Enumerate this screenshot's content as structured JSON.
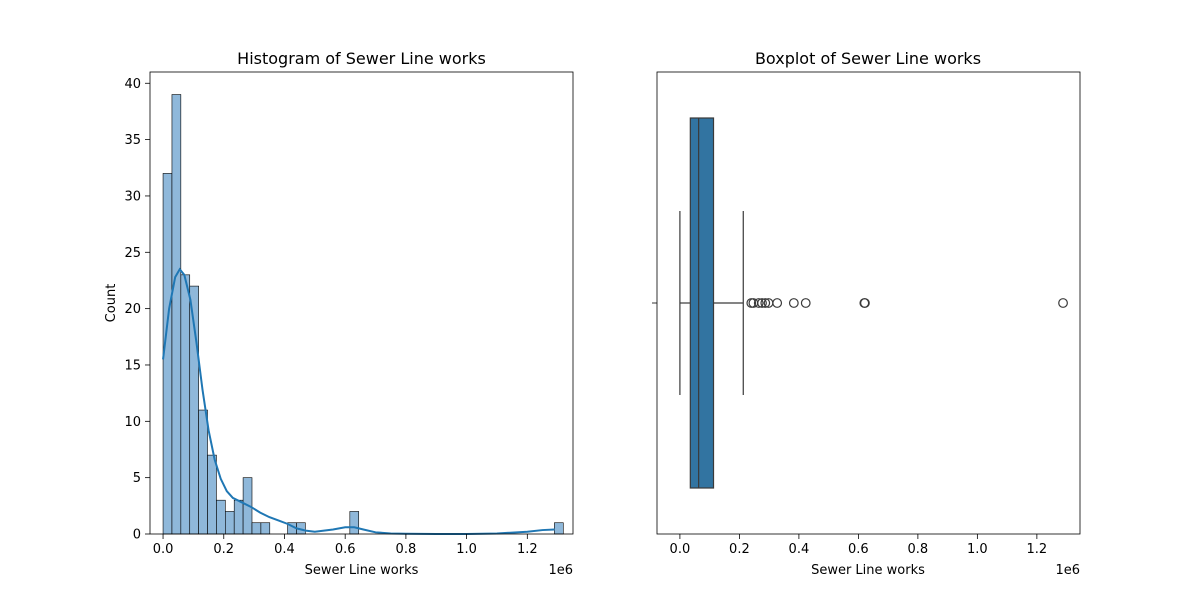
{
  "chart_data": [
    {
      "type": "bar",
      "title": "Histogram of Sewer Line works",
      "xlabel": "Sewer Line works",
      "ylabel": "Count",
      "x_offset_label": "1e6",
      "xlim": [
        -0.043,
        1.3505
      ],
      "ylim": [
        0,
        41
      ],
      "x_ticks": [
        0.0,
        0.2,
        0.4,
        0.6,
        0.8,
        1.0,
        1.2
      ],
      "x_tick_labels": [
        "0.0",
        "0.2",
        "0.4",
        "0.6",
        "0.8",
        "1.0",
        "1.2"
      ],
      "y_ticks": [
        0,
        5,
        10,
        15,
        20,
        25,
        30,
        35,
        40
      ],
      "y_tick_labels": [
        "0",
        "5",
        "10",
        "15",
        "20",
        "25",
        "30",
        "35",
        "40"
      ],
      "bin_start": 0.0,
      "bin_width": 0.0293,
      "counts": [
        32,
        39,
        23,
        22,
        11,
        7,
        3,
        2,
        3,
        5,
        1,
        1,
        0,
        0,
        1,
        1,
        0,
        0,
        0,
        0,
        0,
        2,
        0,
        0,
        0,
        0,
        0,
        0,
        0,
        0,
        0,
        0,
        0,
        0,
        0,
        0,
        0,
        0,
        0,
        0,
        0,
        0,
        0,
        0,
        1
      ],
      "kde": {
        "x": [
          0.0,
          0.02,
          0.04,
          0.055,
          0.07,
          0.09,
          0.11,
          0.13,
          0.15,
          0.17,
          0.19,
          0.21,
          0.23,
          0.26,
          0.29,
          0.32,
          0.35,
          0.38,
          0.41,
          0.44,
          0.47,
          0.5,
          0.53,
          0.56,
          0.6,
          0.63,
          0.66,
          0.7,
          0.75,
          0.8,
          0.9,
          1.0,
          1.1,
          1.2,
          1.25,
          1.29
        ],
        "y": [
          15.5,
          20.0,
          22.8,
          23.5,
          23.0,
          20.8,
          17.0,
          12.8,
          9.2,
          6.6,
          4.9,
          3.8,
          3.2,
          2.8,
          2.4,
          1.9,
          1.5,
          1.2,
          0.9,
          0.5,
          0.3,
          0.2,
          0.3,
          0.4,
          0.6,
          0.6,
          0.4,
          0.15,
          0.05,
          0.02,
          0.0,
          0.0,
          0.05,
          0.2,
          0.35,
          0.4
        ]
      },
      "bar_color": "#8fb8da",
      "line_color": "#1f77b4"
    },
    {
      "type": "boxplot",
      "title": "Boxplot of Sewer Line works",
      "xlabel": "Sewer Line works",
      "x_offset_label": "1e6",
      "xlim": [
        -0.077,
        1.345
      ],
      "x_ticks": [
        0.0,
        0.2,
        0.4,
        0.6,
        0.8,
        1.0,
        1.2
      ],
      "x_tick_labels": [
        "0.0",
        "0.2",
        "0.4",
        "0.6",
        "0.8",
        "1.0",
        "1.2"
      ],
      "whisker_low": 0.0,
      "q1": 0.035,
      "median": 0.063,
      "q3": 0.113,
      "whisker_high": 0.213,
      "outliers": [
        0.24,
        0.247,
        0.265,
        0.276,
        0.287,
        0.298,
        0.327,
        0.383,
        0.423,
        0.62,
        0.622,
        1.288
      ],
      "box_color": "#3274a1"
    }
  ]
}
